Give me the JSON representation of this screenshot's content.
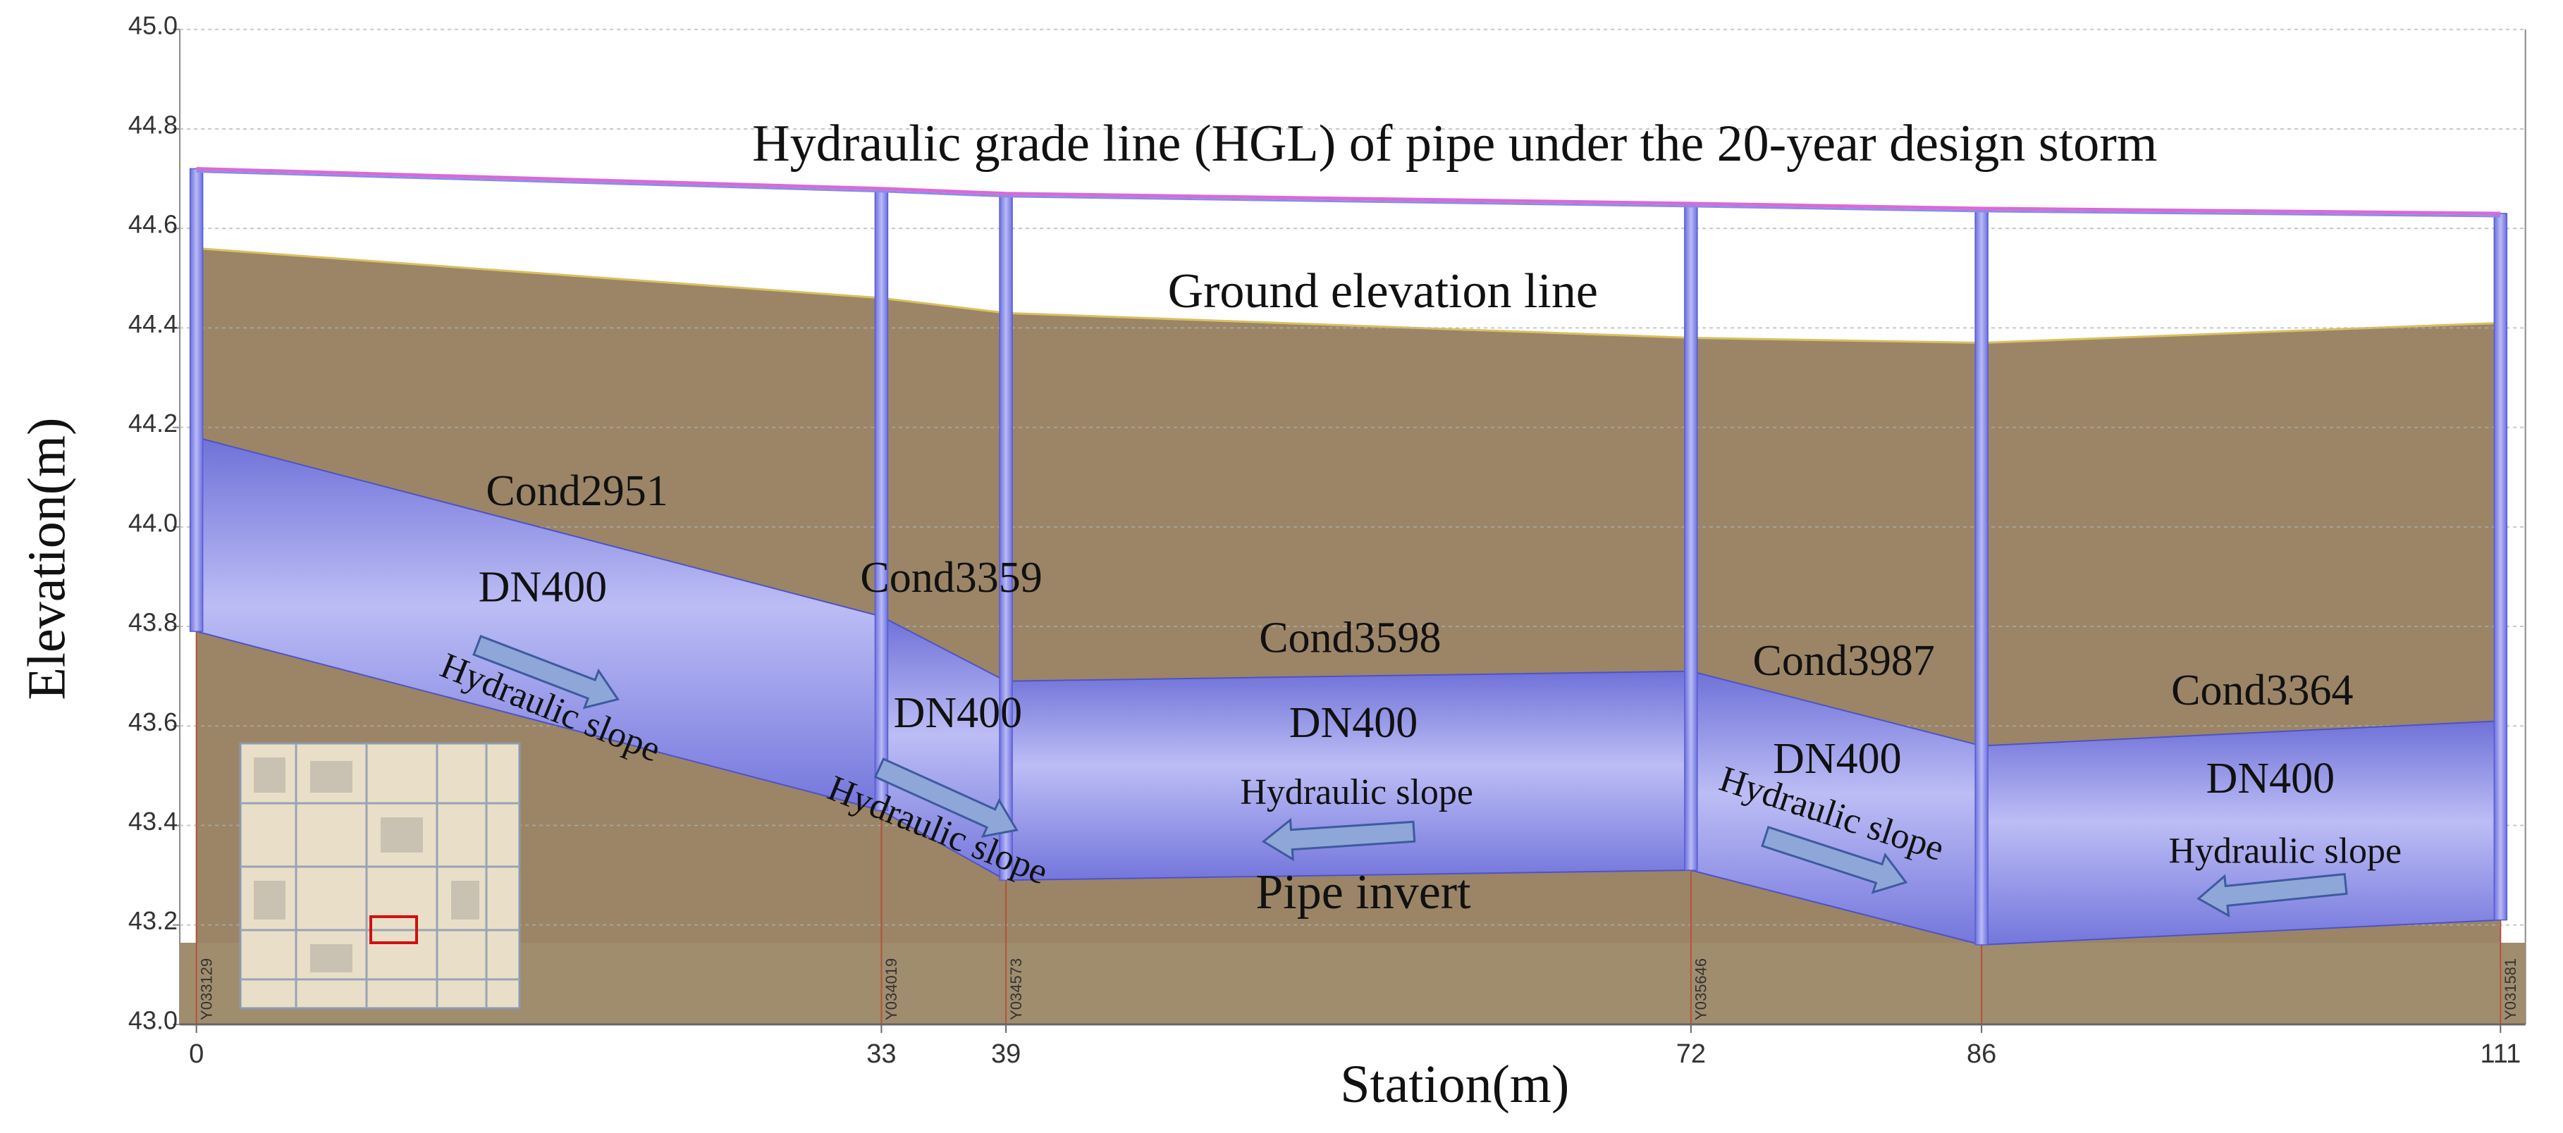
{
  "chart_data": {
    "type": "profile",
    "title": "Hydraulic grade line (HGL) of pipe under the 20-year design storm",
    "xlabel": "Station(m)",
    "ylabel": "Elevation(m)",
    "xlim": [
      -0.8,
      112.2
    ],
    "ylim": [
      43,
      45
    ],
    "xticks": [
      0,
      33,
      39,
      72,
      86,
      111
    ],
    "yticks": [
      {
        "value": 43,
        "label": "43.0"
      },
      43.2,
      43.4,
      43.6,
      43.8,
      {
        "value": 44,
        "label": "44.0"
      },
      44.2,
      44.4,
      44.6,
      44.8,
      {
        "value": 45,
        "label": "45.0"
      }
    ],
    "grid": true,
    "ground_label": "Ground elevation line",
    "invert_label": "Pipe invert",
    "ground_color": "#9b8566",
    "pipe_color": "#8a8ce6",
    "hgl_color": "#d86ad8",
    "nodes": {
      "x": [
        0,
        33,
        39,
        72,
        86,
        111
      ],
      "names": [
        "Y033129",
        "Y034019",
        "Y034573",
        "Y035646",
        null,
        "Y031581"
      ],
      "ground": [
        44.56,
        44.46,
        44.43,
        44.38,
        44.37,
        44.41
      ],
      "hgl": [
        44.72,
        44.68,
        44.67,
        44.65,
        44.64,
        44.63
      ]
    },
    "pipes": [
      {
        "name": "Cond2951",
        "size": "DN400",
        "slope_label": "Hydraulic slope",
        "crown": [
          44.18,
          43.82
        ],
        "invert": [
          43.79,
          43.43
        ]
      },
      {
        "name": "Cond3359",
        "size": "DN400",
        "slope_label": "Hydraulic slope",
        "crown": [
          43.82,
          43.69
        ],
        "invert": [
          43.43,
          43.29
        ]
      },
      {
        "name": "Cond3598",
        "size": "DN400",
        "slope_label": "Hydraulic slope",
        "crown": [
          43.69,
          43.71
        ],
        "invert": [
          43.29,
          43.31
        ]
      },
      {
        "name": "Cond3987",
        "size": "DN400",
        "slope_label": "Hydraulic slope",
        "crown": [
          43.71,
          43.56
        ],
        "invert": [
          43.31,
          43.16
        ]
      },
      {
        "name": "Cond3364",
        "size": "DN400",
        "slope_label": "Hydraulic slope",
        "crown": [
          43.56,
          43.61
        ],
        "invert": [
          43.16,
          43.21
        ]
      }
    ]
  }
}
